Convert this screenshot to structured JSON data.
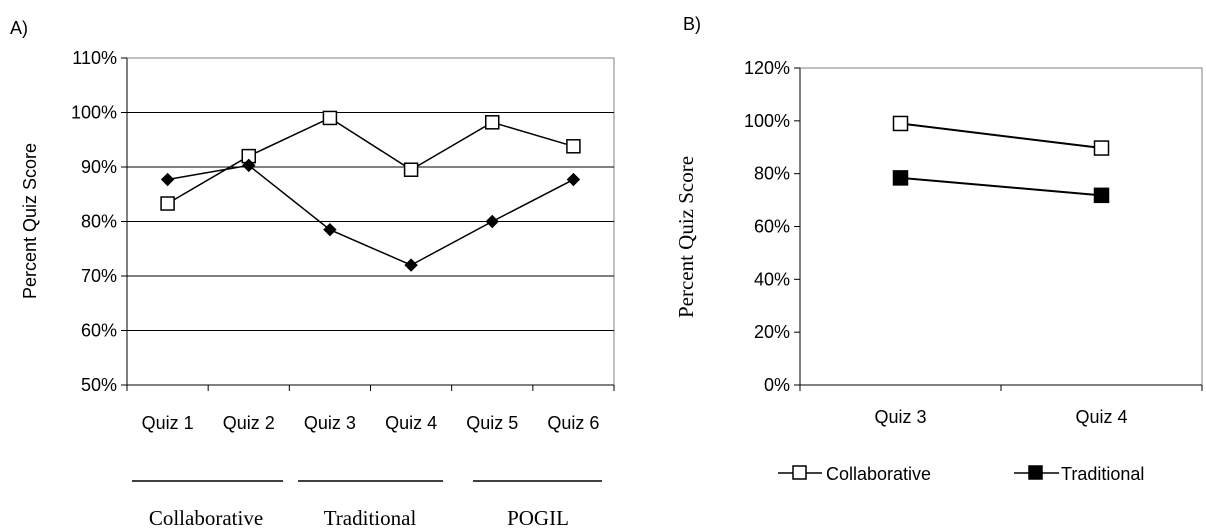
{
  "panel_labels": {
    "a": "A)",
    "b": "B)"
  },
  "groups": [
    "Collaborative",
    "Traditional",
    "POGIL"
  ],
  "legend": {
    "collaborative": "Collaborative",
    "traditional": "Traditional"
  },
  "colors": {
    "line": "#000000",
    "grid": "#000000",
    "frame": "#808080",
    "open_marker_fill": "#ffffff",
    "filled_marker_fill": "#000000"
  },
  "chart_data": [
    {
      "type": "line",
      "categories": [
        "Quiz 1",
        "Quiz 2",
        "Quiz 3",
        "Quiz 4",
        "Quiz 5",
        "Quiz 6"
      ],
      "series": [
        {
          "values": [
            83.3,
            92.0,
            99.0,
            89.5,
            98.2,
            93.8
          ],
          "marker": "open-square"
        },
        {
          "values": [
            87.7,
            90.3,
            78.5,
            72.0,
            80.0,
            87.7
          ],
          "marker": "filled-diamond"
        }
      ],
      "ylabel": "Percent Quiz Score",
      "ylim": [
        50,
        110
      ],
      "yticks": [
        "50%",
        "60%",
        "70%",
        "80%",
        "90%",
        "100%",
        "110%"
      ],
      "grid": true
    },
    {
      "type": "line",
      "categories": [
        "Quiz 3",
        "Quiz 4"
      ],
      "series": [
        {
          "name": "Collaborative",
          "values": [
            99.0,
            89.7
          ],
          "marker": "open-square"
        },
        {
          "name": "Traditional",
          "values": [
            78.4,
            71.8
          ],
          "marker": "filled-square"
        }
      ],
      "ylabel": "Percent Quiz Score",
      "ylim": [
        0,
        120
      ],
      "yticks": [
        "0%",
        "20%",
        "40%",
        "60%",
        "80%",
        "100%",
        "120%"
      ],
      "grid": false,
      "legend_position": "bottom"
    }
  ]
}
